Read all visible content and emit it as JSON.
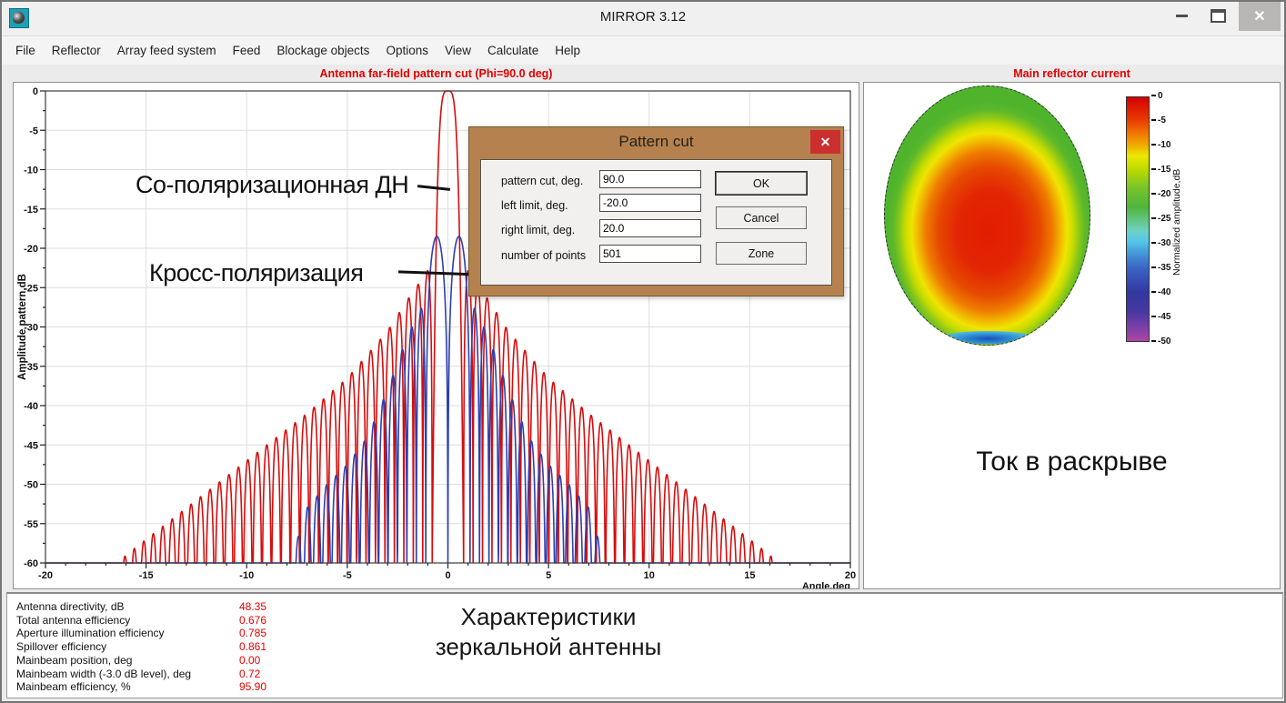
{
  "window": {
    "title": "MIRROR 3.12",
    "close_glyph": "✕"
  },
  "menu": {
    "items": [
      "File",
      "Reflector",
      "Array feed system",
      "Feed",
      "Blockage objects",
      "Options",
      "View",
      "Calculate",
      "Help"
    ]
  },
  "left_panel": {
    "caption": "Antenna far-field pattern cut (Phi=90.0 deg)"
  },
  "right_panel": {
    "caption": "Main reflector current"
  },
  "annotations": {
    "copol_label": "Со-поляризационная ДН",
    "crosspol_label": "Кросс-поляризация",
    "aperture_label": "Ток в раскрыве",
    "results_caption": [
      "Характеристики",
      "зеркальной антенны"
    ]
  },
  "dialog": {
    "title": "Pattern cut",
    "close_glyph": "✕",
    "fields": [
      {
        "label": "pattern cut, deg.",
        "value": "90.0"
      },
      {
        "label": "left limit, deg.",
        "value": "-20.0"
      },
      {
        "label": "right limit, deg.",
        "value": "20.0"
      },
      {
        "label": "number of points",
        "value": "501"
      }
    ],
    "buttons": [
      "OK",
      "Cancel",
      "Zone"
    ]
  },
  "results": {
    "rows": [
      {
        "label": "Antenna directivity, dB",
        "value": "48.35"
      },
      {
        "label": "Total antenna efficiency",
        "value": "0.676"
      },
      {
        "label": "Aperture illumination efficiency",
        "value": "0.785"
      },
      {
        "label": "Spillover efficiency",
        "value": "0.861"
      },
      {
        "label": "Mainbeam position, deg",
        "value": "0.00"
      },
      {
        "label": "Mainbeam width (-3.0 dB level), deg",
        "value": "0.72"
      },
      {
        "label": "Mainbeam efficiency, %",
        "value": "95.90"
      }
    ]
  },
  "chart_data": [
    {
      "type": "line",
      "title": "Antenna far-field pattern cut (Phi=90.0 deg)",
      "xlabel": "Angle,deg",
      "ylabel": "Amplitude pattern,dB",
      "xlim": [
        -20,
        20
      ],
      "ylim": [
        -60,
        0
      ],
      "x_ticks": [
        -20,
        -15,
        -10,
        -5,
        0,
        5,
        10,
        15,
        20
      ],
      "y_ticks": [
        0,
        -5,
        -10,
        -15,
        -20,
        -25,
        -30,
        -35,
        -40,
        -45,
        -50,
        -55,
        -60
      ],
      "x_minor_step": 1,
      "y_minor_step": 2.5,
      "grid": true,
      "legend_position": "none",
      "series": [
        {
          "name": "Co-polarization pattern (Со-поляризационная ДН)",
          "color": "#d60d0d",
          "kind": "copol",
          "main_lobe_peak_dB": 0,
          "main_lobe_position_deg": 0,
          "beamwidth_3dB_deg": 0.72,
          "first_null_deg": 0.78,
          "null_exponent": 3.87,
          "first_sidelobe_dB": -22,
          "sidelobe_spacing_deg": 0.47,
          "envelope_dB": [
            [
              0.78,
              -22
            ],
            [
              2,
              -26.5
            ],
            [
              3,
              -30.5
            ],
            [
              5,
              -36.5
            ],
            [
              7,
              -41
            ],
            [
              10,
              -47
            ],
            [
              12,
              -51
            ],
            [
              14,
              -55
            ],
            [
              16,
              -59
            ],
            [
              18,
              -64.5
            ],
            [
              20,
              -70
            ]
          ]
        },
        {
          "name": "Cross-polarization (Кросс-поляризация)",
          "color": "#2e3fae",
          "kind": "crosspol",
          "peak_dB": -18.5,
          "peak_position_deg": 0.55,
          "inner_null_deg": 1.1,
          "sidelobe_spacing_deg": 0.47,
          "envelope_dB": [
            [
              1.1,
              -26.5
            ],
            [
              2,
              -31
            ],
            [
              3,
              -38
            ],
            [
              4,
              -44
            ],
            [
              5,
              -47.5
            ],
            [
              6,
              -50
            ],
            [
              7,
              -53
            ],
            [
              7.6,
              -58
            ],
            [
              8.2,
              -75
            ],
            [
              20,
              -85
            ]
          ],
          "floor_dB": -60
        }
      ]
    },
    {
      "type": "heatmap",
      "title": "Main reflector current",
      "shape": "circular-aperture",
      "description": "Aperture amplitude distribution: ~0 dB (red) in the center tapering through yellow to ~-15 dB (green) at the rim, with a small ~-30 dB (blue) spot at the bottom edge",
      "colormap": "jet-like",
      "colorbar": {
        "label": "Normalized amplitude,dB",
        "ticks": [
          0,
          -5,
          -10,
          -15,
          -20,
          -25,
          -30,
          -35,
          -40,
          -45,
          -50
        ],
        "range_dB": [
          -50,
          0
        ]
      }
    }
  ]
}
